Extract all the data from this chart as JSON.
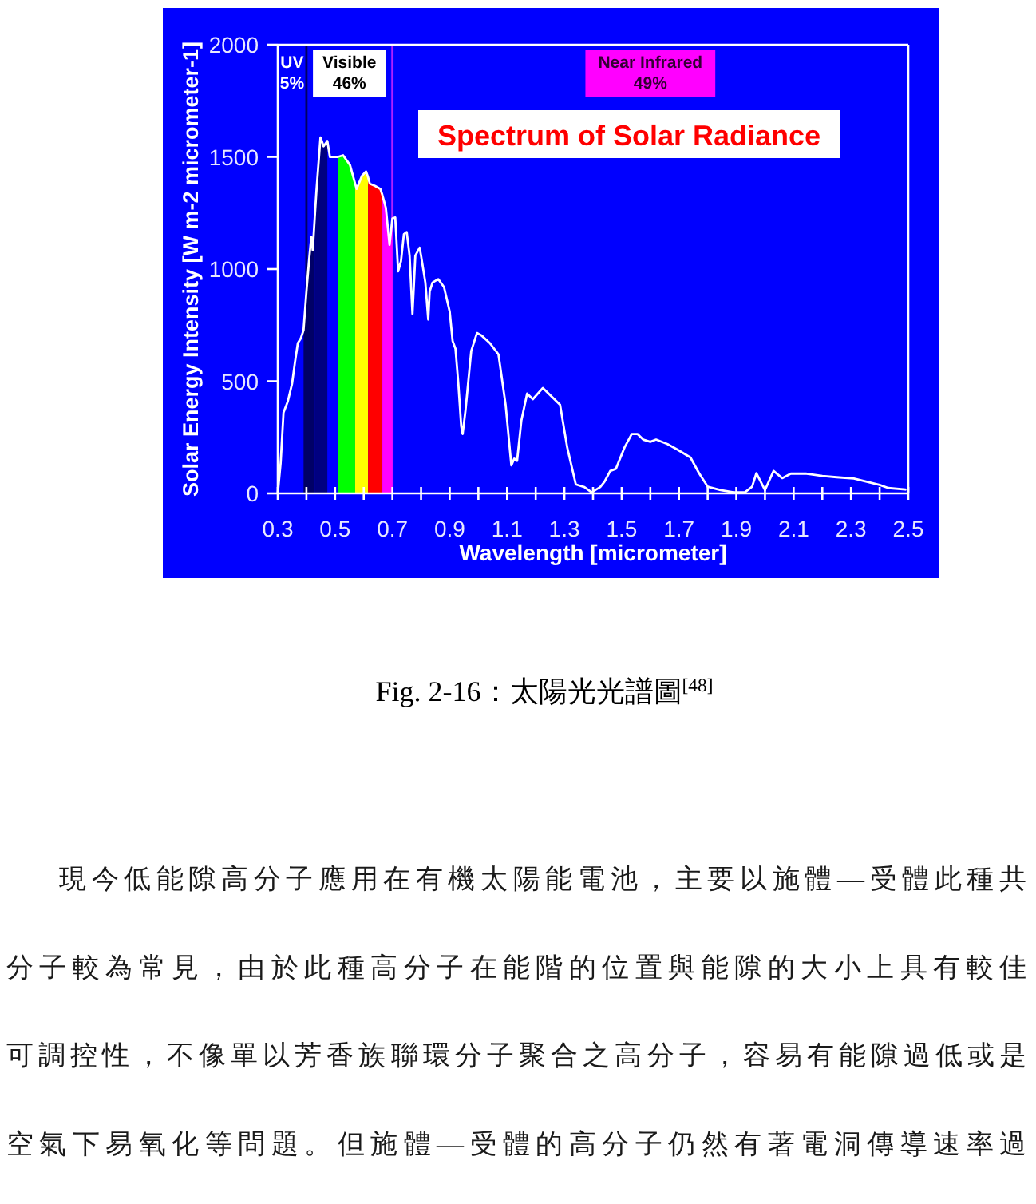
{
  "chart_data": {
    "type": "line",
    "title": "Spectrum of Solar Radiance",
    "xlabel": "Wavelength [micrometer]",
    "ylabel": "Solar Energy Intensity [W m-2 micrometer-1]",
    "xlim": [
      0.3,
      2.5
    ],
    "ylim": [
      0,
      2000
    ],
    "xticks": [
      0.3,
      {
        "value": 0.4,
        "label": null
      },
      0.5,
      {
        "value": 0.6,
        "label": null
      },
      0.7,
      {
        "value": 0.8,
        "label": null
      },
      0.9,
      {
        "value": 1.0,
        "label": null
      },
      1.1,
      {
        "value": 1.2,
        "label": null
      },
      1.3,
      {
        "value": 1.4,
        "label": null
      },
      1.5,
      {
        "value": 1.6,
        "label": null
      },
      1.7,
      {
        "value": 1.8,
        "label": null
      },
      1.9,
      {
        "value": 2.0,
        "label": null
      },
      2.1,
      {
        "value": 2.2,
        "label": null
      },
      2.3,
      {
        "value": 2.4,
        "label": null
      },
      2.5
    ],
    "yticks": [
      0,
      500,
      1000,
      1500,
      2000
    ],
    "series": [
      {
        "color": "#ffffff",
        "x": [
          0.3,
          0.31,
          0.32,
          0.335,
          0.35,
          0.36,
          0.37,
          0.38,
          0.39,
          0.4,
          0.41,
          0.417,
          0.422,
          0.43,
          0.435,
          0.449,
          0.46,
          0.473,
          0.482,
          0.51,
          0.528,
          0.552,
          0.57,
          0.575,
          0.594,
          0.608,
          0.615,
          0.621,
          0.64,
          0.658,
          0.665,
          0.677,
          0.69,
          0.7,
          0.71,
          0.72,
          0.73,
          0.74,
          0.75,
          0.76,
          0.77,
          0.78,
          0.795,
          0.8,
          0.815,
          0.825,
          0.83,
          0.84,
          0.86,
          0.88,
          0.9,
          0.91,
          0.92,
          0.93,
          0.94,
          0.945,
          0.955,
          0.975,
          0.995,
          1.01,
          1.04,
          1.07,
          1.095,
          1.115,
          1.125,
          1.135,
          1.15,
          1.17,
          1.19,
          1.225,
          1.265,
          1.285,
          1.31,
          1.34,
          1.37,
          1.395,
          1.425,
          1.44,
          1.46,
          1.48,
          1.51,
          1.535,
          1.555,
          1.575,
          1.6,
          1.62,
          1.66,
          1.695,
          1.74,
          1.77,
          1.8,
          1.845,
          1.89,
          1.93,
          1.955,
          1.97,
          2.0,
          2.03,
          2.06,
          2.09,
          2.145,
          2.2,
          2.25,
          2.31,
          2.4,
          2.43,
          2.49
        ],
        "values": [
          0,
          135,
          360,
          410,
          490,
          585,
          670,
          690,
          728,
          900,
          1050,
          1143,
          1084,
          1250,
          1350,
          1587,
          1547,
          1571,
          1500,
          1500,
          1507,
          1464,
          1380,
          1357,
          1416,
          1435,
          1410,
          1381,
          1370,
          1357,
          1330,
          1274,
          1108,
          1226,
          1230,
          990,
          1035,
          1155,
          1165,
          1060,
          800,
          1060,
          1095,
          1060,
          940,
          775,
          900,
          940,
          955,
          920,
          810,
          680,
          645,
          490,
          300,
          265,
          370,
          635,
          715,
          705,
          670,
          620,
          395,
          125,
          155,
          145,
          325,
          445,
          420,
          470,
          420,
          395,
          205,
          40,
          28,
          5,
          28,
          52,
          100,
          110,
          205,
          265,
          265,
          240,
          230,
          240,
          220,
          195,
          160,
          90,
          30,
          15,
          5,
          5,
          30,
          90,
          15,
          100,
          68,
          88,
          88,
          78,
          72,
          66,
          38,
          24,
          17
        ]
      },
      {
        "type": "area",
        "color": "#000066",
        "x": [
          0.39,
          0.4,
          0.41,
          0.417,
          0.422,
          0.43
        ],
        "values": [
          728,
          900,
          1050,
          1143,
          1084,
          1250
        ]
      },
      {
        "type": "area",
        "color": "#000080",
        "x": [
          0.43,
          0.435,
          0.449,
          0.46,
          0.473
        ],
        "values": [
          1250,
          1350,
          1587,
          1547,
          1571
        ]
      },
      {
        "type": "area",
        "color": "#00ff00",
        "x": [
          0.51,
          0.528,
          0.552,
          0.57
        ],
        "values": [
          1500,
          1507,
          1464,
          1380
        ]
      },
      {
        "type": "area",
        "color": "#ffff00",
        "x": [
          0.57,
          0.575,
          0.594,
          0.608,
          0.615
        ],
        "values": [
          1380,
          1357,
          1416,
          1435,
          1410
        ]
      },
      {
        "type": "area",
        "color": "#ff0000",
        "x": [
          0.615,
          0.621,
          0.64,
          0.658,
          0.665
        ],
        "values": [
          1410,
          1381,
          1370,
          1357,
          1330
        ]
      },
      {
        "type": "area",
        "color": "#ff00ff",
        "x": [
          0.665,
          0.677,
          0.69,
          0.7
        ],
        "values": [
          1330,
          1274,
          1108,
          1226
        ]
      }
    ],
    "ref_lines": [
      {
        "axis": "x",
        "value": 0.4,
        "color": "#000060"
      },
      {
        "axis": "x",
        "value": 0.7,
        "color": "#b020ff"
      }
    ],
    "annotations": [
      "UV\n5%",
      "Visible\n46%",
      "Near Infrared\n49%",
      "Fig. 2-16：太陽光光譜圖$^{[48]}$",
      "現今低能隙高分子應用在有機太陽能電池，主要以施體—受體此種共",
      "分子較為常見，由於此種高分子在能階的位置與能隙的大小上具有較佳",
      "可調控性，不像單以芳香族聯環分子聚合之高分子，容易有能隙過低或是",
      "空氣下易氧化等問題。但施體—受體的高分子仍然有著電洞傳導速率過"
    ]
  }
}
